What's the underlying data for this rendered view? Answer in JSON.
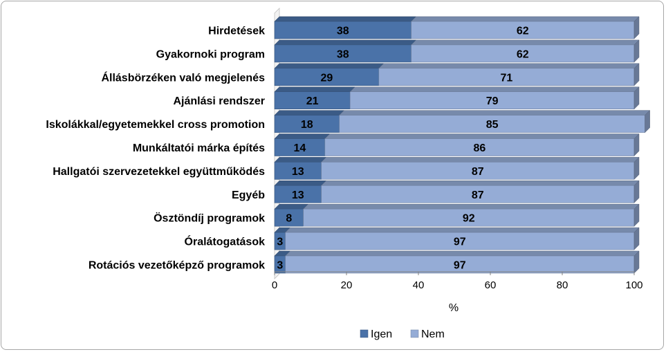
{
  "chart_data": {
    "type": "bar",
    "orientation": "horizontal",
    "stacked": true,
    "three_d": true,
    "categories": [
      "Hirdetések",
      "Gyakornoki program",
      "Állásbörzéken való megjelenés",
      "Ajánlási rendszer",
      "Iskolákkal/egyetemekkel cross promotion",
      "Munkáltatói márka építés",
      "Hallgatói szervezetekkel együttműködés",
      "Egyéb",
      "Ösztöndíj programok",
      "Óralátogatások",
      "Rotációs vezetőképző programok"
    ],
    "series": [
      {
        "name": "Igen",
        "color": "#4a72a8",
        "values": [
          38,
          38,
          29,
          21,
          18,
          14,
          13,
          13,
          8,
          3,
          3
        ]
      },
      {
        "name": "Nem",
        "color": "#95acd6",
        "values": [
          62,
          62,
          71,
          79,
          85,
          86,
          87,
          87,
          92,
          97,
          97
        ]
      }
    ],
    "xlabel": "%",
    "xlim": [
      0,
      100
    ],
    "xticks": [
      0,
      20,
      40,
      60,
      80,
      100
    ],
    "grid": false,
    "legend_position": "bottom"
  }
}
